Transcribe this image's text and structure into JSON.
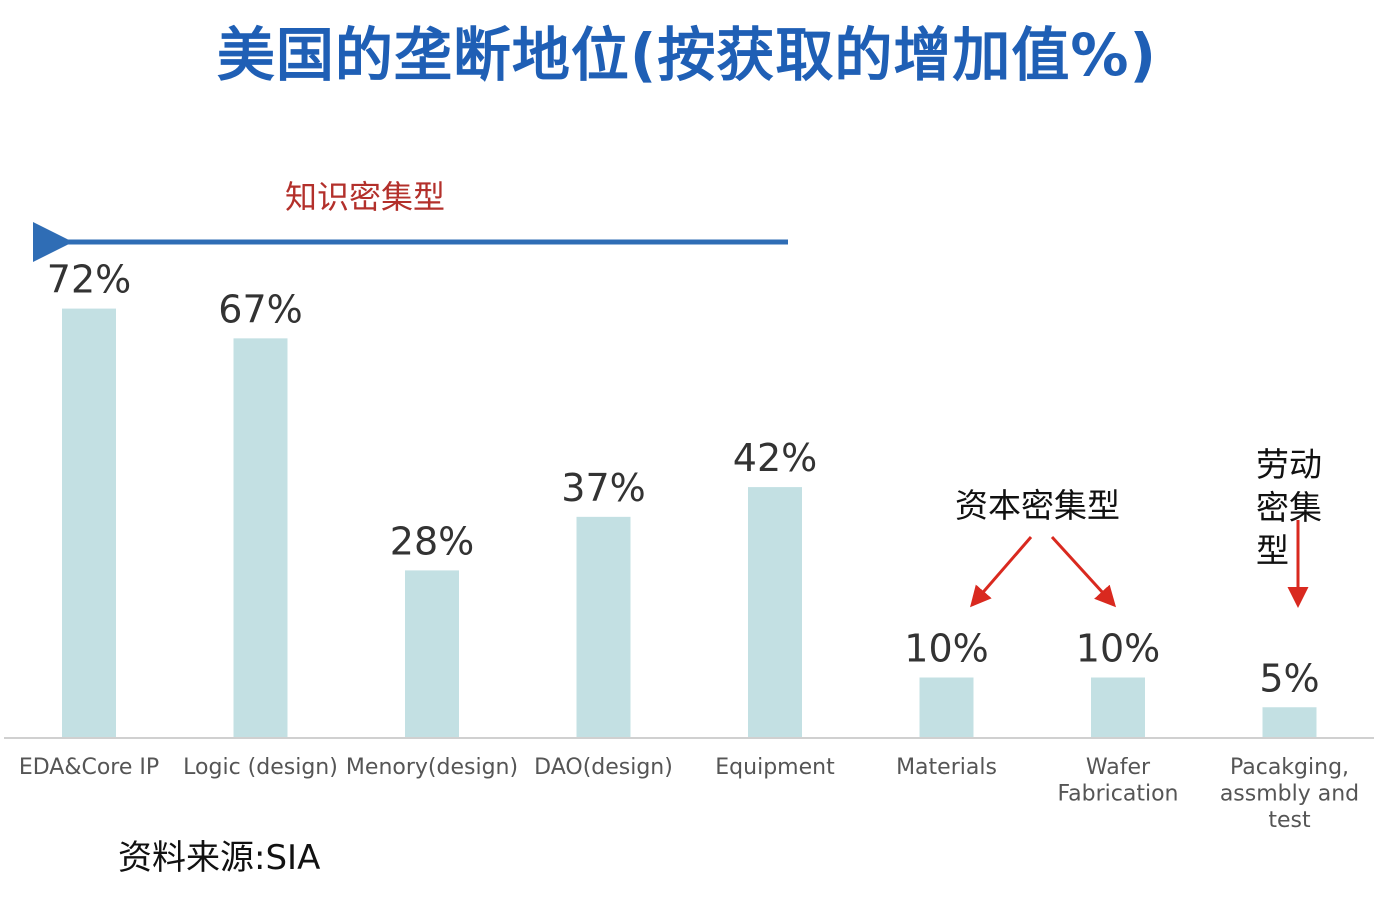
{
  "title": "美国的垄断地位(按获取的增加值%)",
  "annotations": {
    "knowledge_intensive": "知识密集型",
    "capital_intensive": "资本密集型",
    "labor_intensive": "劳动密集型"
  },
  "source": "资料来源:SIA",
  "colors": {
    "title": "#1f5fb5",
    "bar": "#c3e0e3",
    "blue_arrow": "#2f6db5",
    "red_arrow": "#d9291f",
    "red_label": "#b3302b"
  },
  "chart_data": {
    "type": "bar",
    "title": "美国的垄断地位(按获取的增加值%)",
    "xlabel": "",
    "ylabel": "",
    "ylim": [
      0,
      80
    ],
    "grid": false,
    "legend": "none",
    "categories": [
      "EDA&Core IP",
      "Logic (design)",
      "Menory(design)",
      "DAO(design)",
      "Equipment",
      "Materials",
      "Wafer Fabrication",
      "Pacakging, assmbly and test"
    ],
    "category_lines": [
      [
        "EDA&Core IP"
      ],
      [
        "Logic (design)"
      ],
      [
        "Menory(design)"
      ],
      [
        "DAO(design)"
      ],
      [
        "Equipment"
      ],
      [
        "Materials"
      ],
      [
        "Wafer",
        "Fabrication"
      ],
      [
        "Pacakging,",
        "assmbly and",
        "test"
      ]
    ],
    "values": [
      72,
      67,
      28,
      37,
      42,
      10,
      10,
      5
    ],
    "data_labels": [
      "72%",
      "67%",
      "28%",
      "37%",
      "42%",
      "10%",
      "10%",
      "5%"
    ]
  }
}
